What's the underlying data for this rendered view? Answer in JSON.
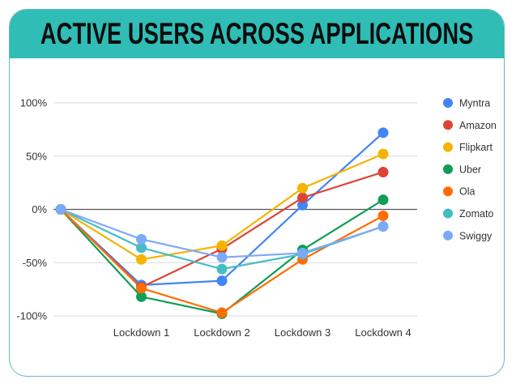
{
  "chart_data": {
    "type": "line",
    "title": "ACTIVE USERS ACROSS APPLICATIONS",
    "xlabel": "",
    "ylabel": "",
    "x": [
      "",
      "Lockdown 1",
      "Lockdown 2",
      "Lockdown 3",
      "Lockdown 4"
    ],
    "ylim": [
      -100,
      100
    ],
    "yticks": [
      100,
      50,
      0,
      -50,
      -100
    ],
    "ytick_labels": [
      "100%",
      "50%",
      "0%",
      "-50%",
      "-100%"
    ],
    "grid": true,
    "legend_position": "right",
    "series": [
      {
        "name": "Myntra",
        "color": "#4285f4",
        "values": [
          0,
          -71,
          -67,
          4,
          72
        ]
      },
      {
        "name": "Amazon",
        "color": "#db4437",
        "values": [
          0,
          -73,
          -37,
          11,
          35
        ]
      },
      {
        "name": "Flipkart",
        "color": "#f4b400",
        "values": [
          0,
          -47,
          -34,
          20,
          52
        ]
      },
      {
        "name": "Uber",
        "color": "#0f9d58",
        "values": [
          0,
          -82,
          -98,
          -38,
          9
        ]
      },
      {
        "name": "Ola",
        "color": "#ff6d00",
        "values": [
          0,
          -74,
          -97,
          -47,
          -6
        ]
      },
      {
        "name": "Zomato",
        "color": "#46bdc6",
        "values": [
          0,
          -36,
          -56,
          -42,
          -16
        ]
      },
      {
        "name": "Swiggy",
        "color": "#7baaf7",
        "values": [
          0,
          -28,
          -45,
          -41,
          -16
        ]
      }
    ]
  }
}
